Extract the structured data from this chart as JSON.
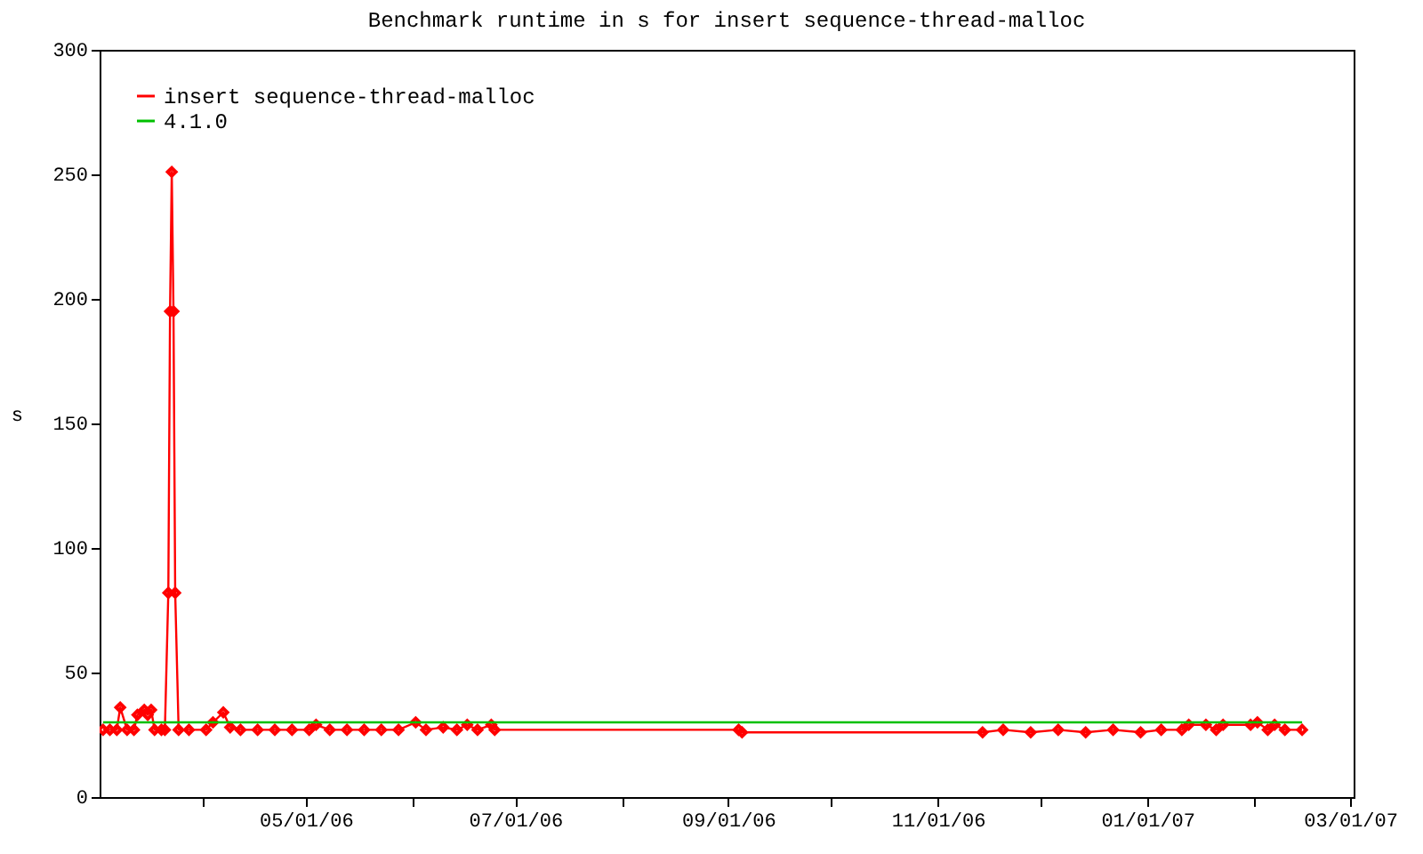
{
  "chart_data": {
    "type": "line",
    "title": "Benchmark runtime in s for insert sequence-thread-malloc",
    "ylabel": "s",
    "xlim": [
      "2006-03-02",
      "2007-03-02"
    ],
    "xticks": [
      {
        "value": "2006-04-01",
        "label": null
      },
      {
        "value": "2006-05-01",
        "label": "05/01/06"
      },
      {
        "value": "2006-06-01",
        "label": null
      },
      {
        "value": "2006-07-01",
        "label": "07/01/06"
      },
      {
        "value": "2006-08-01",
        "label": null
      },
      {
        "value": "2006-09-01",
        "label": "09/01/06"
      },
      {
        "value": "2006-10-01",
        "label": null
      },
      {
        "value": "2006-11-01",
        "label": "11/01/06"
      },
      {
        "value": "2006-12-01",
        "label": null
      },
      {
        "value": "2007-01-01",
        "label": "01/01/07"
      },
      {
        "value": "2007-02-01",
        "label": null
      },
      {
        "value": "2007-03-01",
        "label": "03/01/07"
      }
    ],
    "ylim": [
      0,
      300
    ],
    "yticks": [
      0,
      50,
      100,
      150,
      200,
      250,
      300
    ],
    "grid": false,
    "legend": "top left",
    "series": [
      {
        "name": "insert sequence-thread-malloc",
        "color": "#ff0000",
        "marker": "diamond",
        "x": [
          "2006-03-03",
          "2006-03-05",
          "2006-03-07",
          "2006-03-08",
          "2006-03-10",
          "2006-03-12",
          "2006-03-13",
          "2006-03-15",
          "2006-03-16",
          "2006-03-17",
          "2006-03-18",
          "2006-03-20",
          "2006-03-21",
          "2006-03-22",
          "2006-03-22T12:00",
          "2006-03-23",
          "2006-03-23T12:00",
          "2006-03-24",
          "2006-03-25",
          "2006-03-28",
          "2006-04-02",
          "2006-04-04",
          "2006-04-07",
          "2006-04-09",
          "2006-04-12",
          "2006-04-17",
          "2006-04-22",
          "2006-04-27",
          "2006-05-02",
          "2006-05-04",
          "2006-05-08",
          "2006-05-13",
          "2006-05-18",
          "2006-05-23",
          "2006-05-28",
          "2006-06-02",
          "2006-06-05",
          "2006-06-10",
          "2006-06-14",
          "2006-06-17",
          "2006-06-20",
          "2006-06-24",
          "2006-06-25",
          "2006-09-04",
          "2006-09-05",
          "2006-11-14",
          "2006-11-20",
          "2006-11-28",
          "2006-12-06",
          "2006-12-14",
          "2006-12-22",
          "2006-12-30",
          "2007-01-05",
          "2007-01-11",
          "2007-01-13",
          "2007-01-18",
          "2007-01-21",
          "2007-01-23",
          "2007-01-31",
          "2007-02-02",
          "2007-02-05",
          "2007-02-07",
          "2007-02-10",
          "2007-02-15"
        ],
        "values": [
          27,
          27,
          27,
          36,
          27,
          27,
          33,
          35,
          33,
          35,
          27,
          27,
          27,
          82,
          195,
          251,
          195,
          82,
          27,
          27,
          27,
          30,
          34,
          28,
          27,
          27,
          27,
          27,
          27,
          29,
          27,
          27,
          27,
          27,
          27,
          30,
          27,
          28,
          27,
          29,
          27,
          29,
          27,
          27,
          26,
          26,
          27,
          26,
          27,
          26,
          27,
          26,
          27,
          27,
          29,
          29,
          27,
          29,
          29,
          30,
          27,
          29,
          27,
          27
        ]
      },
      {
        "name": "4.1.0",
        "color": "#00c000",
        "marker": "none",
        "x": [
          "2006-03-03",
          "2007-02-15"
        ],
        "values": [
          30,
          30
        ]
      }
    ]
  }
}
